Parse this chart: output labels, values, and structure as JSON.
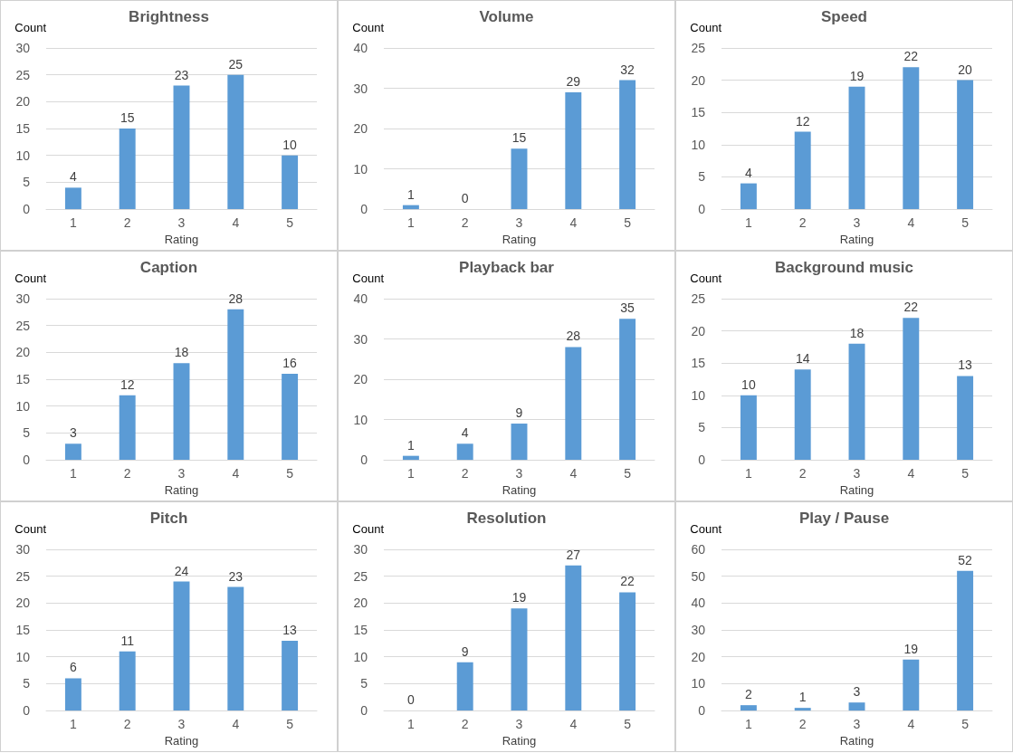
{
  "chart_data": [
    {
      "type": "bar",
      "title": "Brightness",
      "ylabel": "Count",
      "xlabel": "Rating",
      "categories": [
        "1",
        "2",
        "3",
        "4",
        "5"
      ],
      "values": [
        4,
        15,
        23,
        25,
        10
      ],
      "color": "#5b9bd5",
      "ylim": [
        0,
        30
      ],
      "yticks": [
        0,
        5,
        10,
        15,
        20,
        25,
        30
      ],
      "grid": "y",
      "data_labels": true
    },
    {
      "type": "bar",
      "title": "Volume",
      "ylabel": "Count",
      "xlabel": "Rating",
      "categories": [
        "1",
        "2",
        "3",
        "4",
        "5"
      ],
      "values": [
        1,
        0,
        15,
        29,
        32
      ],
      "color": "#5b9bd5",
      "ylim": [
        0,
        40
      ],
      "yticks": [
        0,
        10,
        20,
        30,
        40
      ],
      "grid": "y",
      "data_labels": true
    },
    {
      "type": "bar",
      "title": "Speed",
      "ylabel": "Count",
      "xlabel": "Rating",
      "categories": [
        "1",
        "2",
        "3",
        "4",
        "5"
      ],
      "values": [
        4,
        12,
        19,
        22,
        20
      ],
      "color": "#5b9bd5",
      "ylim": [
        0,
        25
      ],
      "yticks": [
        0,
        5,
        10,
        15,
        20,
        25
      ],
      "grid": "y",
      "data_labels": true
    },
    {
      "type": "bar",
      "title": "Caption",
      "ylabel": "Count",
      "xlabel": "Rating",
      "categories": [
        "1",
        "2",
        "3",
        "4",
        "5"
      ],
      "values": [
        3,
        12,
        18,
        28,
        16
      ],
      "color": "#5b9bd5",
      "ylim": [
        0,
        30
      ],
      "yticks": [
        0,
        5,
        10,
        15,
        20,
        25,
        30
      ],
      "grid": "y",
      "data_labels": true
    },
    {
      "type": "bar",
      "title": "Playback bar",
      "ylabel": "Count",
      "xlabel": "Rating",
      "categories": [
        "1",
        "2",
        "3",
        "4",
        "5"
      ],
      "values": [
        1,
        4,
        9,
        28,
        35
      ],
      "color": "#5b9bd5",
      "ylim": [
        0,
        40
      ],
      "yticks": [
        0,
        10,
        20,
        30,
        40
      ],
      "grid": "y",
      "data_labels": true
    },
    {
      "type": "bar",
      "title": "Background music",
      "ylabel": "Count",
      "xlabel": "Rating",
      "categories": [
        "1",
        "2",
        "3",
        "4",
        "5"
      ],
      "values": [
        10,
        14,
        18,
        22,
        13
      ],
      "color": "#5b9bd5",
      "ylim": [
        0,
        25
      ],
      "yticks": [
        0,
        5,
        10,
        15,
        20,
        25
      ],
      "grid": "y",
      "data_labels": true
    },
    {
      "type": "bar",
      "title": "Pitch",
      "ylabel": "Count",
      "xlabel": "Rating",
      "categories": [
        "1",
        "2",
        "3",
        "4",
        "5"
      ],
      "values": [
        6,
        11,
        24,
        23,
        13
      ],
      "color": "#5b9bd5",
      "ylim": [
        0,
        30
      ],
      "yticks": [
        0,
        5,
        10,
        15,
        20,
        25,
        30
      ],
      "grid": "y",
      "data_labels": true
    },
    {
      "type": "bar",
      "title": "Resolution",
      "ylabel": "Count",
      "xlabel": "Rating",
      "categories": [
        "1",
        "2",
        "3",
        "4",
        "5"
      ],
      "values": [
        0,
        9,
        19,
        27,
        22
      ],
      "color": "#5b9bd5",
      "ylim": [
        0,
        30
      ],
      "yticks": [
        0,
        5,
        10,
        15,
        20,
        25,
        30
      ],
      "grid": "y",
      "data_labels": true
    },
    {
      "type": "bar",
      "title": "Play / Pause",
      "ylabel": "Count",
      "xlabel": "Rating",
      "categories": [
        "1",
        "2",
        "3",
        "4",
        "5"
      ],
      "values": [
        2,
        1,
        3,
        19,
        52
      ],
      "color": "#5b9bd5",
      "ylim": [
        0,
        60
      ],
      "yticks": [
        0,
        10,
        20,
        30,
        40,
        50,
        60
      ],
      "grid": "y",
      "data_labels": true
    }
  ]
}
